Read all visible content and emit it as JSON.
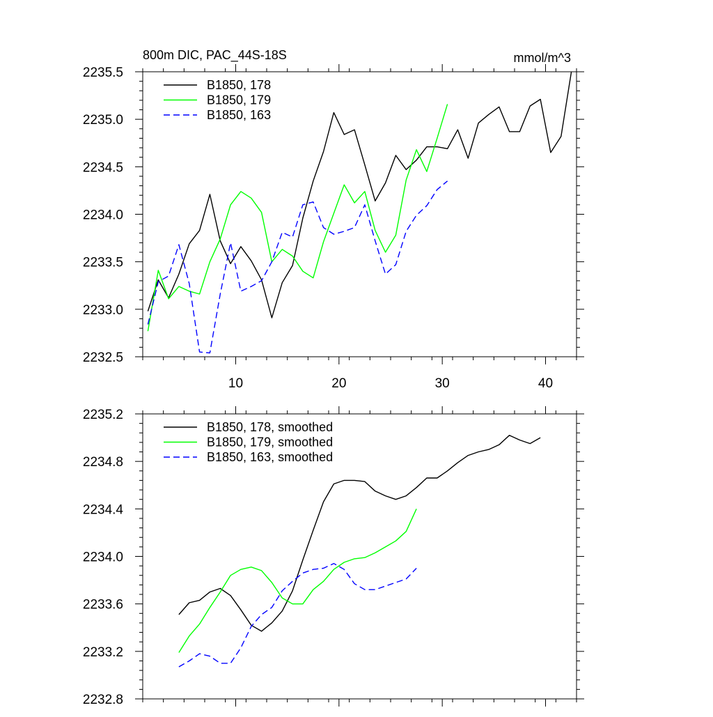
{
  "chart_data": [
    {
      "type": "line",
      "title": "800m DIC, PAC_44S-18S",
      "units": "mmol/m^3",
      "xlabel": "",
      "ylabel": "",
      "xlim": [
        1,
        43
      ],
      "ylim": [
        2232.5,
        2235.5
      ],
      "xticks": [
        10,
        20,
        30,
        40
      ],
      "xtick_labels": [
        "10",
        "20",
        "30",
        "40"
      ],
      "yticks": [
        2232.5,
        2233.0,
        2233.5,
        2234.0,
        2234.5,
        2235.0,
        2235.5
      ],
      "ytick_labels": [
        "2232.5",
        "2233.0",
        "2233.5",
        "2234.0",
        "2234.5",
        "2235.0",
        "2235.5"
      ],
      "legend_position": "top-left",
      "grid": false,
      "series": [
        {
          "name": "B1850, 178",
          "color": "#000000",
          "dash": "solid",
          "x": [
            1.5,
            2.5,
            3.5,
            4.5,
            5.5,
            6.5,
            7.5,
            8.5,
            9.5,
            10.5,
            11.5,
            12.5,
            13.5,
            14.5,
            15.5,
            16.5,
            17.5,
            18.5,
            19.5,
            20.5,
            21.5,
            22.5,
            23.5,
            24.5,
            25.5,
            26.5,
            27.5,
            28.5,
            29.5,
            30.5,
            31.5,
            32.5,
            33.5,
            34.5,
            35.5,
            36.5,
            37.5,
            38.5,
            39.5,
            40.5,
            41.5,
            42.5
          ],
          "values": [
            2232.98,
            2233.31,
            2233.12,
            2233.37,
            2233.69,
            2233.83,
            2234.21,
            2233.72,
            2233.48,
            2233.66,
            2233.51,
            2233.31,
            2232.91,
            2233.28,
            2233.46,
            2233.96,
            2234.35,
            2234.66,
            2235.07,
            2234.84,
            2234.89,
            2234.52,
            2234.14,
            2234.33,
            2234.62,
            2234.47,
            2234.57,
            2234.71,
            2234.71,
            2234.69,
            2234.89,
            2234.59,
            2234.96,
            2235.05,
            2235.13,
            2234.87,
            2234.87,
            2235.14,
            2235.21,
            2234.65,
            2234.82,
            2235.5
          ]
        },
        {
          "name": "B1850, 179",
          "color": "#00ff00",
          "dash": "solid",
          "x": [
            1.5,
            2.5,
            3.5,
            4.5,
            5.5,
            6.5,
            7.5,
            8.5,
            9.5,
            10.5,
            11.5,
            12.5,
            13.5,
            14.5,
            15.5,
            16.5,
            17.5,
            18.5,
            19.5,
            20.5,
            21.5,
            22.5,
            23.5,
            24.5,
            25.5,
            26.5,
            27.5,
            28.5,
            29.5,
            30.5
          ],
          "values": [
            2232.77,
            2233.41,
            2233.11,
            2233.24,
            2233.19,
            2233.16,
            2233.5,
            2233.74,
            2234.1,
            2234.24,
            2234.17,
            2234.02,
            2233.5,
            2233.63,
            2233.56,
            2233.4,
            2233.33,
            2233.71,
            2234.01,
            2234.31,
            2234.12,
            2234.24,
            2233.83,
            2233.6,
            2233.78,
            2234.36,
            2234.68,
            2234.45,
            2234.8,
            2235.16
          ]
        },
        {
          "name": "B1850, 163",
          "color": "#0000ff",
          "dash": "dashed",
          "x": [
            1.5,
            2.5,
            3.5,
            4.5,
            5.5,
            6.5,
            7.5,
            8.5,
            9.5,
            10.5,
            11.5,
            12.5,
            13.5,
            14.5,
            15.5,
            16.5,
            17.5,
            18.5,
            19.5,
            20.5,
            21.5,
            22.5,
            23.5,
            24.5,
            25.5,
            26.5,
            27.5,
            28.5,
            29.5,
            30.5
          ],
          "values": [
            2232.84,
            2233.29,
            2233.35,
            2233.68,
            2233.27,
            2232.55,
            2232.54,
            2233.16,
            2233.7,
            2233.19,
            2233.24,
            2233.3,
            2233.5,
            2233.81,
            2233.76,
            2234.1,
            2234.13,
            2233.86,
            2233.79,
            2233.82,
            2233.86,
            2234.1,
            2233.72,
            2233.37,
            2233.47,
            2233.82,
            2233.99,
            2234.09,
            2234.26,
            2234.35
          ]
        }
      ]
    },
    {
      "type": "line",
      "title": "",
      "units": "",
      "xlabel": "",
      "ylabel": "",
      "xlim": [
        1,
        43
      ],
      "ylim": [
        2232.8,
        2235.2
      ],
      "xticks": [
        10,
        20,
        30,
        40
      ],
      "xtick_labels": [],
      "yticks": [
        2232.8,
        2233.2,
        2233.6,
        2234.0,
        2234.4,
        2234.8,
        2235.2
      ],
      "ytick_labels": [
        "2232.8",
        "2233.2",
        "2233.6",
        "2234.0",
        "2234.4",
        "2234.8",
        "2235.2"
      ],
      "legend_position": "top-left",
      "grid": false,
      "series": [
        {
          "name": "B1850, 178, smoothed",
          "color": "#000000",
          "dash": "solid",
          "x": [
            4.5,
            5.5,
            6.5,
            7.5,
            8.5,
            9.5,
            10.5,
            11.5,
            12.5,
            13.5,
            14.5,
            15.5,
            16.5,
            17.5,
            18.5,
            19.5,
            20.5,
            21.5,
            22.5,
            23.5,
            24.5,
            25.5,
            26.5,
            27.5,
            28.5,
            29.5,
            30.5,
            31.5,
            32.5,
            33.5,
            34.5,
            35.5,
            36.5,
            37.5,
            38.5,
            39.5
          ],
          "values": [
            2233.51,
            2233.61,
            2233.63,
            2233.7,
            2233.73,
            2233.67,
            2233.55,
            2233.42,
            2233.37,
            2233.44,
            2233.54,
            2233.71,
            2233.97,
            2234.22,
            2234.46,
            2234.61,
            2234.64,
            2234.64,
            2234.63,
            2234.55,
            2234.51,
            2234.48,
            2234.51,
            2234.58,
            2234.66,
            2234.66,
            2234.72,
            2234.79,
            2234.85,
            2234.88,
            2234.9,
            2234.94,
            2235.02,
            2234.98,
            2234.95,
            2235.0
          ]
        },
        {
          "name": "B1850, 179, smoothed",
          "color": "#00ff00",
          "dash": "solid",
          "x": [
            4.5,
            5.5,
            6.5,
            7.5,
            8.5,
            9.5,
            10.5,
            11.5,
            12.5,
            13.5,
            14.5,
            15.5,
            16.5,
            17.5,
            18.5,
            19.5,
            20.5,
            21.5,
            22.5,
            23.5,
            24.5,
            25.5,
            26.5,
            27.5
          ],
          "values": [
            2233.19,
            2233.33,
            2233.43,
            2233.57,
            2233.7,
            2233.84,
            2233.89,
            2233.91,
            2233.88,
            2233.78,
            2233.65,
            2233.6,
            2233.6,
            2233.72,
            2233.79,
            2233.89,
            2233.95,
            2233.98,
            2233.99,
            2234.03,
            2234.08,
            2234.13,
            2234.21,
            2234.4
          ]
        },
        {
          "name": "B1850, 163, smoothed",
          "color": "#0000ff",
          "dash": "dashed",
          "x": [
            4.5,
            5.5,
            6.5,
            7.5,
            8.5,
            9.5,
            10.5,
            11.5,
            12.5,
            13.5,
            14.5,
            15.5,
            16.5,
            17.5,
            18.5,
            19.5,
            20.5,
            21.5,
            22.5,
            23.5,
            24.5,
            25.5,
            26.5,
            27.5
          ],
          "values": [
            2233.07,
            2233.12,
            2233.18,
            2233.16,
            2233.1,
            2233.1,
            2233.23,
            2233.41,
            2233.51,
            2233.57,
            2233.71,
            2233.79,
            2233.86,
            2233.89,
            2233.9,
            2233.94,
            2233.89,
            2233.77,
            2233.72,
            2233.72,
            2233.75,
            2233.78,
            2233.81,
            2233.9
          ]
        }
      ]
    }
  ]
}
